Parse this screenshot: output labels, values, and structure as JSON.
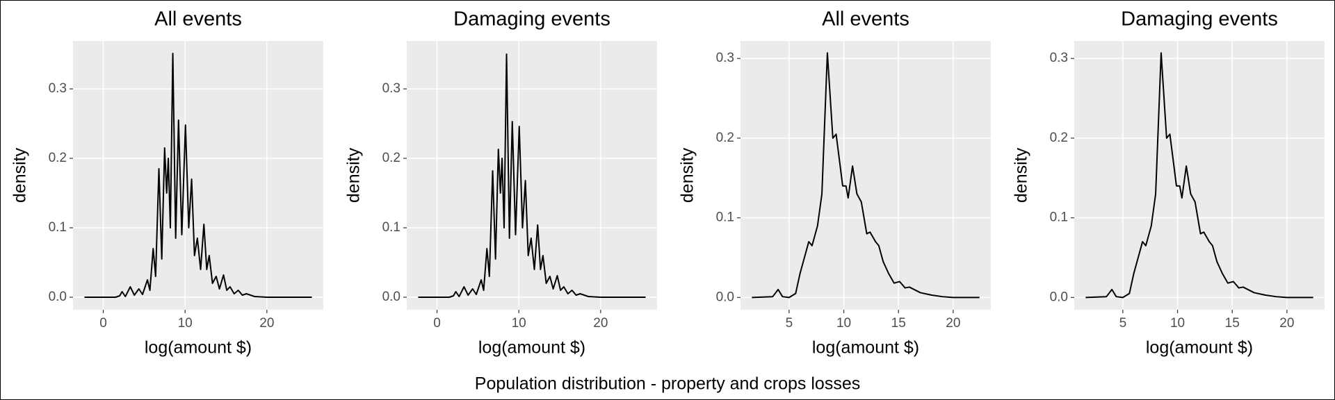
{
  "caption": "Population distribution - property and crops losses",
  "chart_data": [
    {
      "type": "line",
      "title": "All events",
      "x_label": "log(amount $)",
      "y_label": "density",
      "color": "#000000",
      "grid": true,
      "xlim": [
        -3.7,
        26.9
      ],
      "ylim": [
        -0.018,
        0.369
      ],
      "xticks": [
        0,
        10,
        20
      ],
      "yticks": [
        {
          "value": 0,
          "label": "0.0"
        },
        0.1,
        0.2,
        0.3
      ],
      "x": [
        -2.3,
        1.5,
        2.0,
        2.3,
        2.7,
        3.3,
        3.8,
        4.35,
        4.8,
        5.4,
        5.7,
        6.1,
        6.4,
        6.8,
        7.15,
        7.5,
        7.75,
        7.95,
        8.2,
        8.5,
        8.85,
        9.2,
        9.6,
        10.05,
        10.45,
        10.8,
        11.15,
        11.5,
        11.9,
        12.3,
        12.65,
        12.95,
        13.35,
        13.8,
        14.2,
        14.7,
        15.1,
        15.5,
        16.0,
        16.5,
        17.0,
        17.5,
        18.5,
        20,
        25.5
      ],
      "values": [
        0,
        0,
        0.002,
        0.008,
        0.001,
        0.015,
        0.003,
        0.012,
        0.004,
        0.025,
        0.01,
        0.07,
        0.03,
        0.185,
        0.055,
        0.215,
        0.15,
        0.2,
        0.1,
        0.351,
        0.085,
        0.255,
        0.09,
        0.248,
        0.1,
        0.17,
        0.06,
        0.085,
        0.04,
        0.105,
        0.04,
        0.06,
        0.02,
        0.03,
        0.012,
        0.032,
        0.01,
        0.015,
        0.005,
        0.01,
        0.003,
        0.005,
        0.001,
        0,
        0
      ]
    },
    {
      "type": "line",
      "title": "Damaging events",
      "x_label": "log(amount $)",
      "y_label": "density",
      "color": "#000000",
      "grid": true,
      "xlim": [
        -3.7,
        26.9
      ],
      "ylim": [
        -0.018,
        0.369
      ],
      "xticks": [
        0,
        10,
        20
      ],
      "yticks": [
        {
          "value": 0,
          "label": "0.0"
        },
        0.1,
        0.2,
        0.3
      ],
      "x": [
        -2.3,
        1.5,
        2.0,
        2.3,
        2.7,
        3.3,
        3.8,
        4.35,
        4.8,
        5.4,
        5.7,
        6.1,
        6.4,
        6.8,
        7.15,
        7.5,
        7.75,
        7.95,
        8.2,
        8.5,
        8.85,
        9.2,
        9.6,
        10.05,
        10.45,
        10.8,
        11.15,
        11.5,
        11.9,
        12.3,
        12.65,
        12.95,
        13.35,
        13.8,
        14.2,
        14.7,
        15.1,
        15.5,
        16.0,
        16.5,
        17.0,
        17.5,
        18.5,
        20,
        25.5
      ],
      "values": [
        0,
        0,
        0.002,
        0.008,
        0.001,
        0.015,
        0.003,
        0.012,
        0.004,
        0.025,
        0.01,
        0.07,
        0.03,
        0.182,
        0.055,
        0.213,
        0.15,
        0.2,
        0.1,
        0.35,
        0.085,
        0.253,
        0.09,
        0.246,
        0.1,
        0.168,
        0.06,
        0.085,
        0.04,
        0.104,
        0.04,
        0.06,
        0.02,
        0.03,
        0.012,
        0.031,
        0.01,
        0.015,
        0.005,
        0.01,
        0.003,
        0.005,
        0.001,
        0,
        0
      ]
    },
    {
      "type": "line",
      "title": "All events",
      "x_label": "log(amount $)",
      "y_label": "density",
      "color": "#000000",
      "grid": true,
      "xlim": [
        0.56,
        23.44
      ],
      "ylim": [
        -0.0154,
        0.322
      ],
      "xticks": [
        5,
        10,
        15,
        20
      ],
      "yticks": [
        {
          "value": 0,
          "label": "0.0"
        },
        0.1,
        0.2,
        0.3
      ],
      "x": [
        1.6,
        3.5,
        4.0,
        4.4,
        5.0,
        5.6,
        6.0,
        6.3,
        6.8,
        7.1,
        7.6,
        8.0,
        8.5,
        9.0,
        9.3,
        9.9,
        10.2,
        10.4,
        10.8,
        11.2,
        11.6,
        12.1,
        12.4,
        12.9,
        13.2,
        13.6,
        14.1,
        14.6,
        15.1,
        15.6,
        16.0,
        17,
        18,
        19,
        20,
        22.4
      ],
      "values": [
        0,
        0.001,
        0.01,
        0.001,
        0,
        0.005,
        0.03,
        0.045,
        0.07,
        0.065,
        0.09,
        0.13,
        0.307,
        0.2,
        0.205,
        0.14,
        0.14,
        0.125,
        0.165,
        0.13,
        0.12,
        0.08,
        0.082,
        0.07,
        0.065,
        0.045,
        0.03,
        0.018,
        0.02,
        0.012,
        0.013,
        0.006,
        0.003,
        0.001,
        0,
        0
      ]
    },
    {
      "type": "line",
      "title": "Damaging events",
      "x_label": "log(amount $)",
      "y_label": "density",
      "color": "#000000",
      "grid": true,
      "xlim": [
        0.56,
        23.44
      ],
      "ylim": [
        -0.0154,
        0.322
      ],
      "xticks": [
        5,
        10,
        15,
        20
      ],
      "yticks": [
        {
          "value": 0,
          "label": "0.0"
        },
        0.1,
        0.2,
        0.3
      ],
      "x": [
        1.6,
        3.5,
        4.0,
        4.4,
        5.0,
        5.6,
        6.0,
        6.3,
        6.8,
        7.1,
        7.6,
        8.0,
        8.5,
        9.0,
        9.3,
        9.9,
        10.2,
        10.4,
        10.8,
        11.2,
        11.6,
        12.1,
        12.4,
        12.9,
        13.2,
        13.6,
        14.1,
        14.6,
        15.1,
        15.6,
        16.0,
        17,
        18,
        19,
        20,
        22.4
      ],
      "values": [
        0,
        0.001,
        0.01,
        0.001,
        0,
        0.005,
        0.03,
        0.045,
        0.07,
        0.065,
        0.09,
        0.13,
        0.307,
        0.2,
        0.205,
        0.14,
        0.14,
        0.125,
        0.165,
        0.13,
        0.12,
        0.08,
        0.082,
        0.07,
        0.065,
        0.045,
        0.03,
        0.018,
        0.02,
        0.012,
        0.013,
        0.006,
        0.003,
        0.001,
        0,
        0
      ]
    }
  ]
}
